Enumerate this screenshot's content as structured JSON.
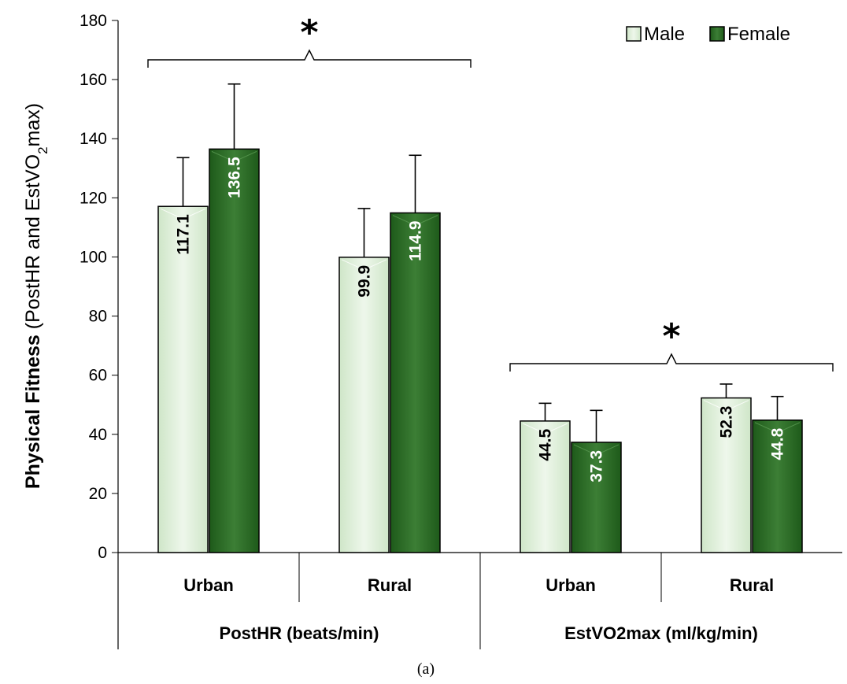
{
  "chart_data": {
    "type": "bar",
    "ylabel": {
      "bold_part": "Physical Fitness",
      "normal_part": "(PostHR and EstVO",
      "subscript": "2",
      "tail": "max)"
    },
    "ylim": [
      0,
      180
    ],
    "yticks": [
      0,
      20,
      40,
      60,
      80,
      100,
      120,
      140,
      160,
      180
    ],
    "grid": false,
    "legend_position": "top-right",
    "groups": [
      {
        "label": "PostHR (beats/min)",
        "categories": [
          "Urban",
          "Rural"
        ]
      },
      {
        "label": "EstVO2max (ml/kg/min)",
        "categories": [
          "Urban",
          "Rural"
        ]
      }
    ],
    "categories": [
      "Urban",
      "Rural",
      "Urban",
      "Rural"
    ],
    "series": [
      {
        "name": "Male",
        "values": [
          117.1,
          99.9,
          44.5,
          52.3
        ],
        "errors": [
          16.5,
          16.5,
          6.0,
          4.7
        ],
        "color": "#e4f1df",
        "label_color": "#000000"
      },
      {
        "name": "Female",
        "values": [
          136.5,
          114.9,
          37.3,
          44.8
        ],
        "errors": [
          22.0,
          19.5,
          10.8,
          8.0
        ],
        "color": "#2f6b2a",
        "label_color": "#ffffff"
      }
    ],
    "data_labels": [
      "117.1",
      "136.5",
      "99.9",
      "114.9",
      "44.5",
      "37.3",
      "52.3",
      "44.8"
    ],
    "annotations": [
      {
        "text": "*",
        "group": 0
      },
      {
        "text": "*",
        "group": 1
      }
    ],
    "caption": "(a)"
  }
}
